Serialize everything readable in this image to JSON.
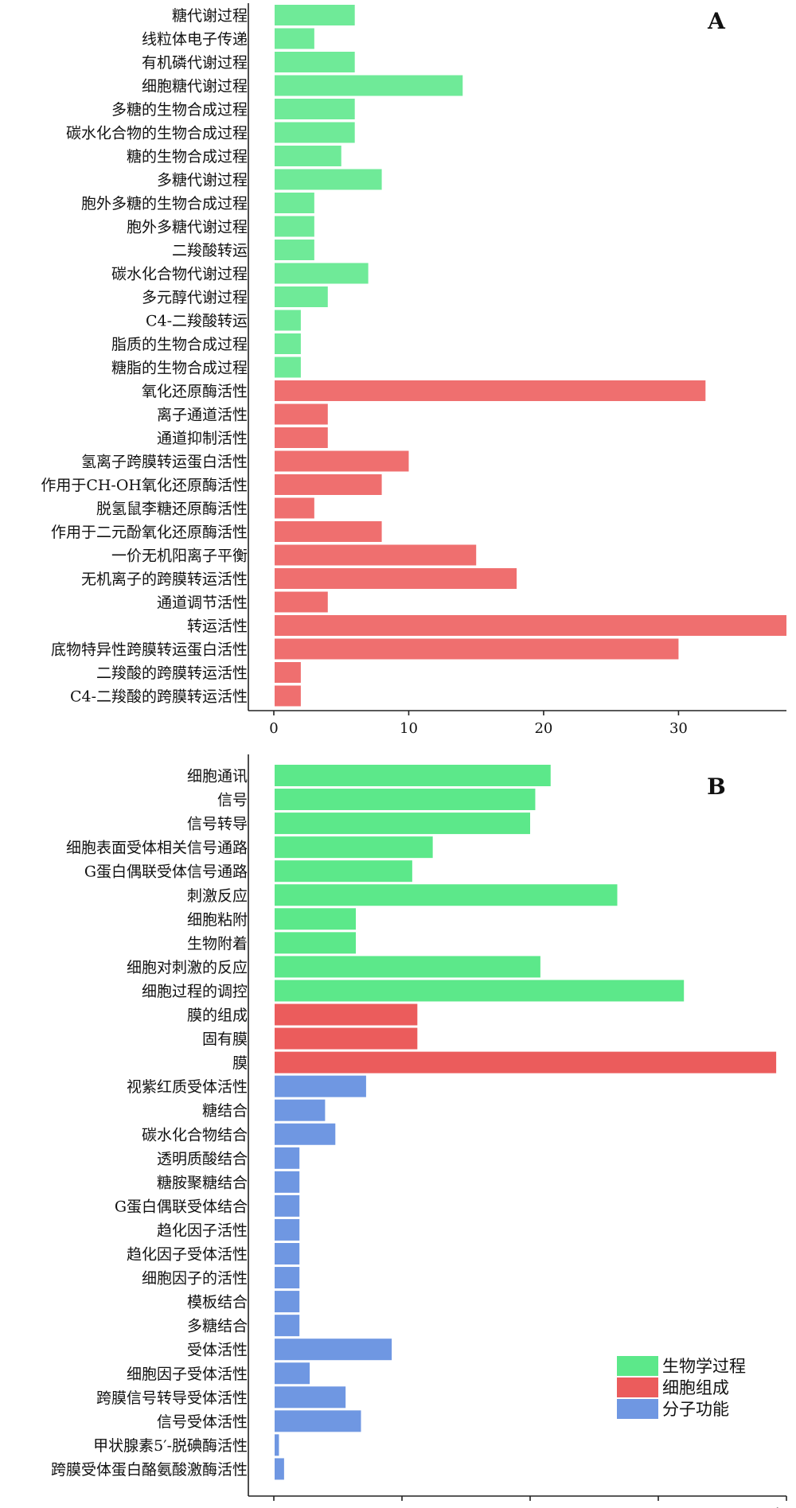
{
  "legend": [
    {
      "label": "生物学过程",
      "color": "#5ce88a"
    },
    {
      "label": "细胞组成",
      "color": "#eb5c5c"
    },
    {
      "label": "分子功能",
      "color": "#6f97e2"
    }
  ],
  "chart_data": [
    {
      "type": "bar",
      "orientation": "horizontal",
      "panel": "A",
      "xlim": [
        0,
        38
      ],
      "xticks": [
        0,
        10,
        20,
        30
      ],
      "categories": [
        "糖代谢过程",
        "线粒体电子传递",
        "有机磷代谢过程",
        "细胞糖代谢过程",
        "多糖的生物合成过程",
        "碳水化合物的生物合成过程",
        "糖的生物合成过程",
        "多糖代谢过程",
        "胞外多糖的生物合成过程",
        "胞外多糖代谢过程",
        "二羧酸转运",
        "碳水化合物代谢过程",
        "多元醇代谢过程",
        "C4-二羧酸转运",
        "脂质的生物合成过程",
        "糖脂的生物合成过程",
        "氧化还原酶活性",
        "离子通道活性",
        "通道抑制活性",
        "氢离子跨膜转运蛋白活性",
        "作用于CH-OH氧化还原酶活性",
        "脱氢鼠李糖还原酶活性",
        "作用于二元酚氧化还原酶活性",
        "一价无机阳离子平衡",
        "无机离子的跨膜转运活性",
        "通道调节活性",
        "转运活性",
        "底物特异性跨膜转运蛋白活性",
        "二羧酸的跨膜转运活性",
        "C4-二羧酸的跨膜转运活性"
      ],
      "values": [
        6,
        3,
        6,
        14,
        6,
        6,
        5,
        8,
        3,
        3,
        3,
        7,
        4,
        2,
        2,
        2,
        32,
        4,
        4,
        10,
        8,
        3,
        8,
        15,
        18,
        4,
        38,
        30,
        2,
        2
      ],
      "groups": [
        "生物学过程",
        "生物学过程",
        "生物学过程",
        "生物学过程",
        "生物学过程",
        "生物学过程",
        "生物学过程",
        "生物学过程",
        "生物学过程",
        "生物学过程",
        "生物学过程",
        "生物学过程",
        "生物学过程",
        "生物学过程",
        "生物学过程",
        "生物学过程",
        "细胞组成",
        "细胞组成",
        "细胞组成",
        "细胞组成",
        "细胞组成",
        "细胞组成",
        "细胞组成",
        "细胞组成",
        "细胞组成",
        "细胞组成",
        "细胞组成",
        "细胞组成",
        "细胞组成",
        "细胞组成"
      ],
      "colors": {
        "生物学过程": "#6fea98",
        "细胞组成": "#ef6f6f"
      }
    },
    {
      "type": "bar",
      "orientation": "horizontal",
      "panel": "B",
      "xlim": [
        0,
        100
      ],
      "xticks": [
        0,
        25,
        50,
        75,
        100
      ],
      "categories": [
        "细胞通讯",
        "信号",
        "信号转导",
        "细胞表面受体相关信号通路",
        "G蛋白偶联受体信号通路",
        "刺激反应",
        "细胞粘附",
        "生物附着",
        "细胞对刺激的反应",
        "细胞过程的调控",
        "膜的组成",
        "固有膜",
        "膜",
        "视紫红质受体活性",
        "糖结合",
        "碳水化合物结合",
        "透明质酸结合",
        "糖胺聚糖结合",
        "G蛋白偶联受体结合",
        "趋化因子活性",
        "趋化因子受体活性",
        "细胞因子的活性",
        "模板结合",
        "多糖结合",
        "受体活性",
        "细胞因子受体活性",
        "跨膜信号转导受体活性",
        "信号受体活性",
        "甲状腺素5′-脱碘酶活性",
        "跨膜受体蛋白酪氨酸激酶活性"
      ],
      "values": [
        54,
        51,
        50,
        31,
        27,
        67,
        16,
        16,
        52,
        80,
        28,
        28,
        98,
        18,
        10,
        12,
        5,
        5,
        5,
        5,
        5,
        5,
        5,
        5,
        23,
        7,
        14,
        17,
        1,
        2
      ],
      "groups": [
        "生物学过程",
        "生物学过程",
        "生物学过程",
        "生物学过程",
        "生物学过程",
        "生物学过程",
        "生物学过程",
        "生物学过程",
        "生物学过程",
        "生物学过程",
        "细胞组成",
        "细胞组成",
        "细胞组成",
        "分子功能",
        "分子功能",
        "分子功能",
        "分子功能",
        "分子功能",
        "分子功能",
        "分子功能",
        "分子功能",
        "分子功能",
        "分子功能",
        "分子功能",
        "分子功能",
        "分子功能",
        "分子功能",
        "分子功能",
        "分子功能",
        "分子功能"
      ],
      "colors": {
        "生物学过程": "#5ce88a",
        "细胞组成": "#eb5c5c",
        "分子功能": "#6f97e2"
      },
      "legend_position": "bottom-right"
    }
  ]
}
